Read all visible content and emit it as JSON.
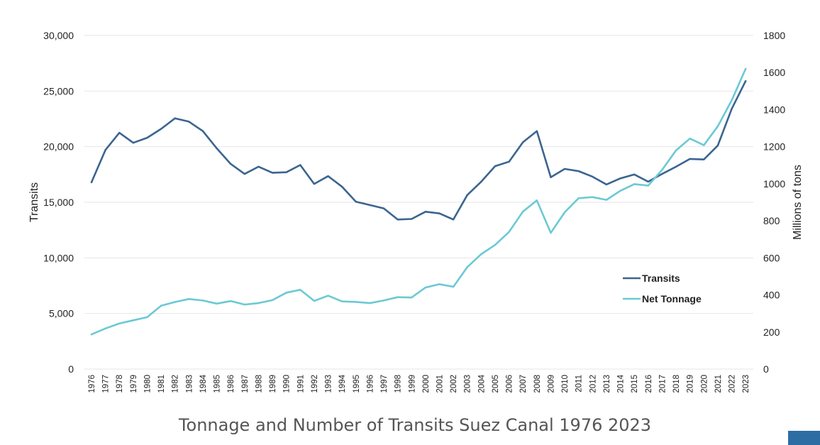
{
  "title": "Tonnage and Number of Transits Suez Canal 1976 2023",
  "chart_data": {
    "type": "line",
    "title": "Tonnage and Number of Transits Suez Canal 1976 2023",
    "xlabel": "",
    "ylabel": "Transits",
    "y2label": "Millions of tons",
    "ylim": [
      0,
      30000
    ],
    "y2lim": [
      0,
      1800
    ],
    "yticks": [
      "0",
      "5,000",
      "10,000",
      "15,000",
      "20,000",
      "25,000",
      "30,000"
    ],
    "y2ticks": [
      "0",
      "200",
      "400",
      "600",
      "800",
      "1000",
      "1200",
      "1400",
      "1600",
      "1800"
    ],
    "grid": true,
    "legend_position": "bottom-right",
    "x": [
      "1976",
      "1977",
      "1978",
      "1979",
      "1980",
      "1981",
      "1982",
      "1983",
      "1984",
      "1985",
      "1986",
      "1987",
      "1988",
      "1989",
      "1990",
      "1991",
      "1992",
      "1993",
      "1994",
      "1995",
      "1996",
      "1997",
      "1998",
      "1999",
      "2000",
      "2001",
      "2002",
      "2003",
      "2004",
      "2005",
      "2006",
      "2007",
      "2008",
      "2009",
      "2010",
      "2011",
      "2012",
      "2013",
      "2014",
      "2015",
      "2016",
      "2017",
      "2018",
      "2019",
      "2020",
      "2021",
      "2022",
      "2023"
    ],
    "series": [
      {
        "name": "Transits",
        "axis": "left",
        "color": "#3b6590",
        "values": [
          16800,
          19700,
          21250,
          20350,
          20800,
          21600,
          22550,
          22250,
          21400,
          19850,
          18450,
          17550,
          18200,
          17650,
          17700,
          18350,
          16650,
          17350,
          16400,
          15050,
          14750,
          14450,
          13450,
          13500,
          14150,
          14000,
          13450,
          15650,
          16850,
          18250,
          18650,
          20400,
          21400,
          17250,
          18000,
          17800,
          17300,
          16600,
          17150,
          17500,
          16850,
          17550,
          18200,
          18900,
          18850,
          20100,
          23400,
          25900
        ]
      },
      {
        "name": "Net Tonnage",
        "axis": "right",
        "color": "#6cc9d4",
        "values": [
          187,
          219,
          246,
          263,
          280,
          342,
          362,
          378,
          370,
          353,
          367,
          348,
          356,
          372,
          412,
          428,
          368,
          396,
          365,
          362,
          356,
          370,
          388,
          386,
          440,
          458,
          444,
          550,
          620,
          670,
          740,
          850,
          910,
          735,
          846,
          922,
          928,
          913,
          962,
          998,
          990,
          1075,
          1180,
          1244,
          1208,
          1310,
          1450,
          1620
        ]
      }
    ]
  }
}
